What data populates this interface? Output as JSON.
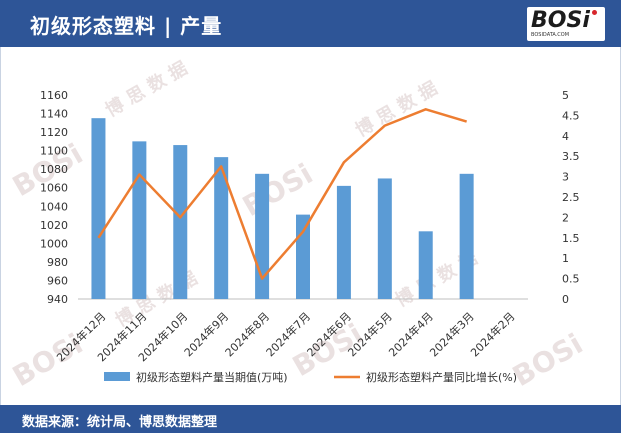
{
  "header": {
    "title": "初级形态塑料 | 产量"
  },
  "logo": {
    "name": "BOSi",
    "sub": "BOSIDATA.COM"
  },
  "footer": {
    "source": "数据来源：统计局、博思数据整理"
  },
  "colors": {
    "header_bg": "#2e5597",
    "bar": "#5b9bd5",
    "line": "#ed7d31"
  },
  "chart_data": {
    "type": "bar+line",
    "categories": [
      "2024年12月",
      "2024年11月",
      "2024年10月",
      "2024年9月",
      "2024年8月",
      "2024年7月",
      "2024年6月",
      "2024年5月",
      "2024年4月",
      "2024年3月",
      "2024年2月"
    ],
    "series": [
      {
        "name": "初级形态塑料产量当期值(万吨)",
        "type": "bar",
        "axis": "left",
        "values": [
          1135,
          1110,
          1106,
          1093,
          1075,
          1031,
          1062,
          1070,
          1013,
          1075,
          null
        ]
      },
      {
        "name": "初级形态塑料产量同比增长(%)",
        "type": "line",
        "axis": "right",
        "values": [
          1.5,
          3.05,
          2.0,
          3.25,
          0.5,
          1.65,
          3.35,
          4.25,
          4.65,
          4.35,
          null
        ]
      }
    ],
    "y_left": {
      "min": 940,
      "max": 1160,
      "step": 20,
      "ticks": [
        "940",
        "960",
        "980",
        "1000",
        "1020",
        "1040",
        "1060",
        "1080",
        "1100",
        "1120",
        "1140",
        "1160"
      ]
    },
    "y_right": {
      "min": 0,
      "max": 5,
      "step": 0.5,
      "ticks": [
        "0",
        "0.5",
        "1",
        "1.5",
        "2",
        "2.5",
        "3",
        "3.5",
        "4",
        "4.5",
        "5"
      ]
    },
    "legend": "bottom",
    "grid": false
  }
}
